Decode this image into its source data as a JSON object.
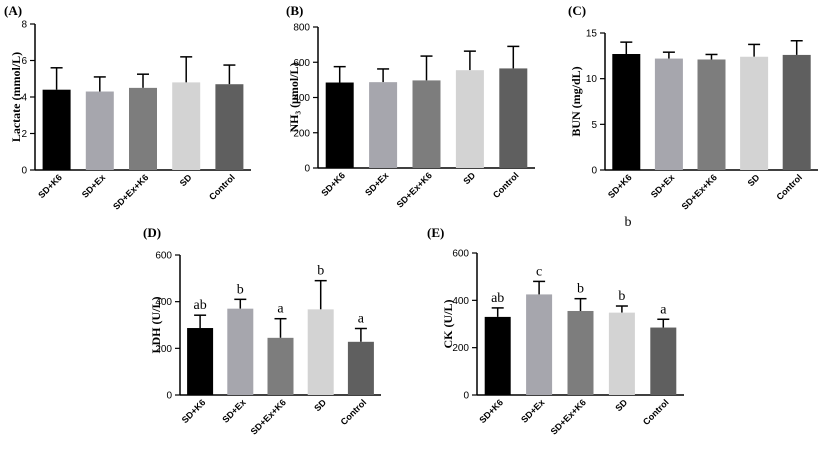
{
  "figure": {
    "colors": {
      "SD+K6": "#000000",
      "SD+Ex": "#a6a6ad",
      "SD+Ex+K6": "#7d7d7d",
      "SD": "#d3d3d3",
      "Control": "#5f5f5f"
    }
  },
  "chart_data": [
    {
      "id": "A",
      "type": "bar",
      "panel_label": "(A)",
      "ylabel": "Lactate (mmol/L)",
      "categories": [
        "SD+K6",
        "SD+Ex",
        "SD+Ex+K6",
        "SD",
        "Control"
      ],
      "values": [
        4.4,
        4.3,
        4.5,
        4.8,
        4.7
      ],
      "errors": [
        1.2,
        0.8,
        0.75,
        1.4,
        1.05
      ],
      "ylim": [
        0,
        8
      ],
      "yticks": [
        0,
        2,
        4,
        6,
        8
      ],
      "sig_labels": [
        "",
        "",
        "",
        "",
        ""
      ],
      "footnote": ""
    },
    {
      "id": "B",
      "type": "bar",
      "panel_label": "(B)",
      "ylabel": "NH₃ (μmol/L)",
      "categories": [
        "SD+K6",
        "SD+Ex",
        "SD+Ex+K6",
        "SD",
        "Control"
      ],
      "values": [
        485,
        487,
        497,
        555,
        565
      ],
      "errors": [
        90,
        75,
        138,
        108,
        125
      ],
      "ylim": [
        0,
        800
      ],
      "yticks": [
        0,
        200,
        400,
        600,
        800
      ],
      "sig_labels": [
        "",
        "",
        "",
        "",
        ""
      ],
      "footnote": ""
    },
    {
      "id": "C",
      "type": "bar",
      "panel_label": "(C)",
      "ylabel": "BUN (mg/dL)",
      "categories": [
        "SD+K6",
        "SD+Ex",
        "SD+Ex+K6",
        "SD",
        "Control"
      ],
      "values": [
        12.7,
        12.2,
        12.1,
        12.4,
        12.6
      ],
      "errors": [
        1.3,
        0.7,
        0.55,
        1.35,
        1.55
      ],
      "ylim": [
        0,
        15
      ],
      "yticks": [
        0,
        5,
        10,
        15
      ],
      "sig_labels": [
        "",
        "",
        "",
        "",
        ""
      ],
      "footnote": "b"
    },
    {
      "id": "D",
      "type": "bar",
      "panel_label": "(D)",
      "ylabel": "LDH (U/L)",
      "categories": [
        "SD+K6",
        "SD+Ex",
        "SD+Ex+K6",
        "SD",
        "Control"
      ],
      "values": [
        287,
        370,
        245,
        367,
        228
      ],
      "errors": [
        55,
        40,
        82,
        123,
        57
      ],
      "ylim": [
        0,
        600
      ],
      "yticks": [
        0,
        200,
        400,
        600
      ],
      "sig_labels": [
        "ab",
        "b",
        "a",
        "b",
        "a"
      ],
      "footnote": ""
    },
    {
      "id": "E",
      "type": "bar",
      "panel_label": "(E)",
      "ylabel": "CK (U/L)",
      "categories": [
        "SD+K6",
        "SD+Ex",
        "SD+Ex+K6",
        "SD",
        "Control"
      ],
      "values": [
        330,
        425,
        355,
        348,
        285
      ],
      "errors": [
        38,
        55,
        52,
        28,
        35
      ],
      "ylim": [
        0,
        600
      ],
      "yticks": [
        0,
        200,
        400,
        600
      ],
      "sig_labels": [
        "ab",
        "c",
        "b",
        "b",
        "a"
      ],
      "footnote": ""
    }
  ]
}
